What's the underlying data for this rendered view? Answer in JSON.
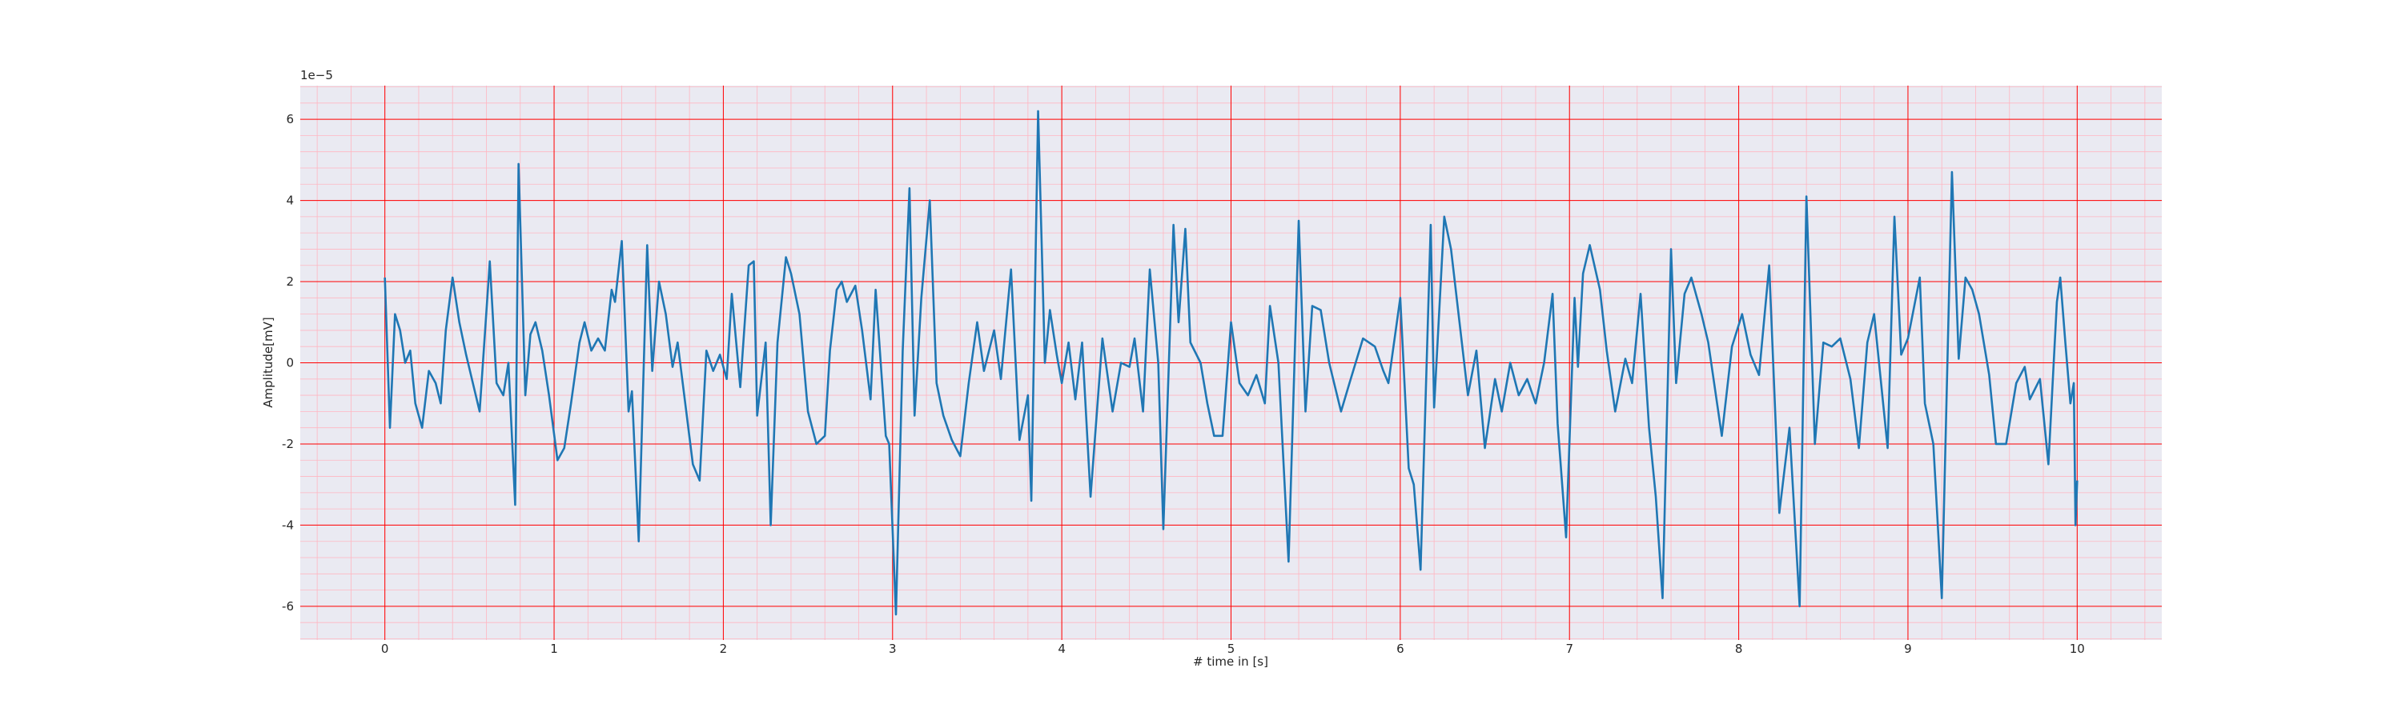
{
  "chart_data": {
    "type": "line",
    "xlabel": "# time in [s]",
    "ylabel": "Amplitude[mV]",
    "offset_text": "1e−5",
    "x": [
      0,
      0.03,
      0.06,
      0.09,
      0.12,
      0.15,
      0.18,
      0.22,
      0.26,
      0.3,
      0.33,
      0.36,
      0.4,
      0.44,
      0.48,
      0.52,
      0.56,
      0.62,
      0.66,
      0.7,
      0.73,
      0.77,
      0.79,
      0.83,
      0.86,
      0.89,
      0.93,
      0.97,
      1.02,
      1.06,
      1.1,
      1.15,
      1.18,
      1.22,
      1.26,
      1.3,
      1.34,
      1.36,
      1.4,
      1.44,
      1.46,
      1.5,
      1.55,
      1.58,
      1.62,
      1.66,
      1.7,
      1.73,
      1.76,
      1.82,
      1.86,
      1.9,
      1.94,
      1.98,
      2.02,
      2.05,
      2.1,
      2.15,
      2.18,
      2.2,
      2.25,
      2.28,
      2.32,
      2.37,
      2.4,
      2.45,
      2.5,
      2.55,
      2.6,
      2.63,
      2.67,
      2.7,
      2.73,
      2.78,
      2.82,
      2.87,
      2.9,
      2.96,
      2.98,
      3.02,
      3.06,
      3.1,
      3.13,
      3.17,
      3.22,
      3.26,
      3.3,
      3.35,
      3.4,
      3.45,
      3.5,
      3.54,
      3.6,
      3.64,
      3.7,
      3.75,
      3.8,
      3.82,
      3.86,
      3.9,
      3.93,
      3.97,
      4.0,
      4.04,
      4.08,
      4.12,
      4.17,
      4.24,
      4.3,
      4.35,
      4.4,
      4.43,
      4.48,
      4.52,
      4.57,
      4.6,
      4.66,
      4.69,
      4.73,
      4.76,
      4.82,
      4.86,
      4.9,
      4.95,
      5.0,
      5.05,
      5.1,
      5.15,
      5.2,
      5.23,
      5.28,
      5.34,
      5.4,
      5.44,
      5.48,
      5.53,
      5.58,
      5.65,
      5.7,
      5.78,
      5.85,
      5.9,
      5.93,
      6.0,
      6.05,
      6.08,
      6.12,
      6.18,
      6.2,
      6.26,
      6.3,
      6.35,
      6.4,
      6.45,
      6.5,
      6.56,
      6.6,
      6.65,
      6.7,
      6.75,
      6.8,
      6.85,
      6.9,
      6.93,
      6.98,
      7.03,
      7.05,
      7.08,
      7.12,
      7.18,
      7.22,
      7.27,
      7.33,
      7.37,
      7.42,
      7.47,
      7.51,
      7.55,
      7.6,
      7.63,
      7.68,
      7.72,
      7.78,
      7.82,
      7.9,
      7.96,
      8.02,
      8.07,
      8.12,
      8.18,
      8.24,
      8.3,
      8.36,
      8.4,
      8.45,
      8.5,
      8.55,
      8.6,
      8.66,
      8.71,
      8.76,
      8.8,
      8.88,
      8.92,
      8.96,
      9.0,
      9.07,
      9.1,
      9.15,
      9.2,
      9.26,
      9.3,
      9.34,
      9.38,
      9.42,
      9.48,
      9.52,
      9.58,
      9.64,
      9.69,
      9.72,
      9.78,
      9.83,
      9.88,
      9.9,
      9.93,
      9.96,
      9.98,
      9.99,
      10.0
    ],
    "values": [
      2.1,
      -1.6,
      1.2,
      0.8,
      0.0,
      0.3,
      -1.0,
      -1.6,
      -0.2,
      -0.5,
      -1.0,
      0.8,
      2.1,
      1.0,
      0.2,
      -0.5,
      -1.2,
      2.5,
      -0.5,
      -0.8,
      0.0,
      -3.5,
      4.9,
      -0.8,
      0.7,
      1.0,
      0.3,
      -0.8,
      -2.4,
      -2.1,
      -1.0,
      0.5,
      1.0,
      0.3,
      0.6,
      0.3,
      1.8,
      1.5,
      3.0,
      -1.2,
      -0.7,
      -4.4,
      2.9,
      -0.2,
      2.0,
      1.2,
      -0.1,
      0.5,
      -0.5,
      -2.5,
      -2.9,
      0.3,
      -0.2,
      0.2,
      -0.4,
      1.7,
      -0.6,
      2.4,
      2.5,
      -1.3,
      0.5,
      -4.0,
      0.5,
      2.6,
      2.2,
      1.2,
      -1.2,
      -2.0,
      -1.8,
      0.3,
      1.8,
      2.0,
      1.5,
      1.9,
      0.8,
      -0.9,
      1.8,
      -1.8,
      -2.0,
      -6.2,
      0.3,
      4.3,
      -1.3,
      1.6,
      4.0,
      -0.5,
      -1.3,
      -1.9,
      -2.3,
      -0.5,
      1.0,
      -0.2,
      0.8,
      -0.4,
      2.3,
      -1.9,
      -0.8,
      -3.4,
      6.2,
      0.0,
      1.3,
      0.2,
      -0.5,
      0.5,
      -0.9,
      0.5,
      -3.3,
      0.6,
      -1.2,
      0.0,
      -0.1,
      0.6,
      -1.2,
      2.3,
      0.0,
      -4.1,
      3.4,
      1.0,
      3.3,
      0.5,
      0.0,
      -1.0,
      -1.8,
      -1.8,
      1.0,
      -0.5,
      -0.8,
      -0.3,
      -1.0,
      1.4,
      0.0,
      -4.9,
      3.5,
      -1.2,
      1.4,
      1.3,
      0.0,
      -1.2,
      -0.5,
      0.6,
      0.4,
      -0.2,
      -0.5,
      1.6,
      -2.6,
      -3.0,
      -5.1,
      3.4,
      -1.1,
      3.6,
      2.8,
      1.0,
      -0.8,
      0.3,
      -2.1,
      -0.4,
      -1.2,
      0.0,
      -0.8,
      -0.4,
      -1.0,
      0.0,
      1.7,
      -1.5,
      -4.3,
      1.6,
      -0.1,
      2.2,
      2.9,
      1.8,
      0.3,
      -1.2,
      0.1,
      -0.5,
      1.7,
      -1.6,
      -3.3,
      -5.8,
      2.8,
      -0.5,
      1.7,
      2.1,
      1.2,
      0.5,
      -1.8,
      0.4,
      1.2,
      0.2,
      -0.3,
      2.4,
      -3.7,
      -1.6,
      -6.0,
      4.1,
      -2.0,
      0.5,
      0.4,
      0.6,
      -0.4,
      -2.1,
      0.5,
      1.2,
      -2.1,
      3.6,
      0.2,
      0.6,
      2.1,
      -1.0,
      -2.0,
      -5.8,
      4.7,
      0.1,
      2.1,
      1.8,
      1.2,
      -0.3,
      -2.0,
      -2.0,
      -0.5,
      -0.1,
      -0.9,
      -0.4,
      -2.5,
      1.5,
      2.1,
      0.5,
      -1.0,
      -0.5,
      -4.0,
      -2.9
    ],
    "color": "#1f77b4",
    "xlim": [
      -0.5,
      10.5
    ],
    "ylim": [
      -6.83,
      6.83
    ],
    "xticks": [
      0,
      1,
      2,
      3,
      4,
      5,
      6,
      7,
      8,
      9,
      10
    ],
    "yticks": [
      -6,
      -4,
      -2,
      0,
      2,
      4,
      6
    ],
    "grid": true,
    "minor_grid": true,
    "grid_color": "#ff0000",
    "minor_grid_color": "#ffb6c1",
    "background": "#eaeaf2"
  }
}
